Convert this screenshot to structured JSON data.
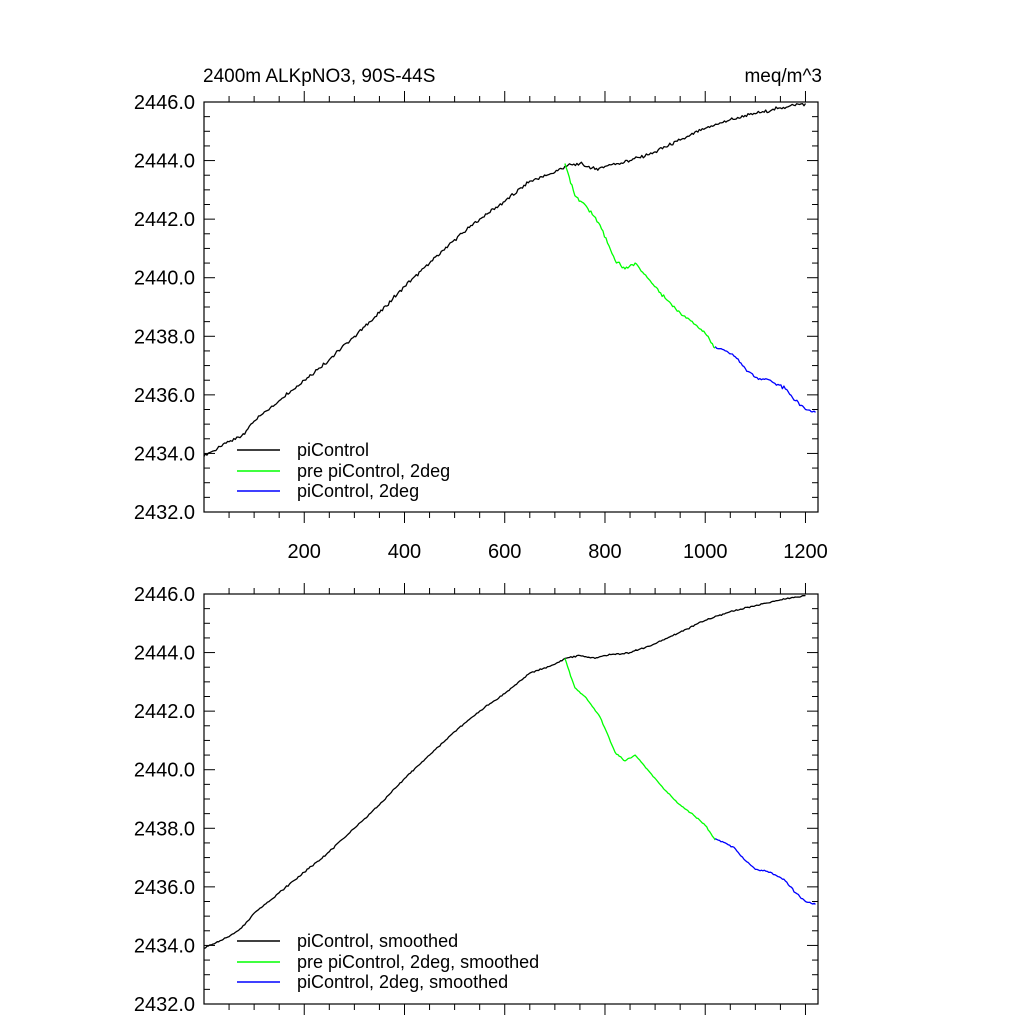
{
  "chart_data": [
    {
      "type": "line",
      "title": "2400m ALKpNO3, 90S-44S",
      "units": "meq/m^3",
      "xlim": [
        0,
        1225
      ],
      "ylim": [
        2432,
        2446
      ],
      "x_ticks": [
        200,
        400,
        600,
        800,
        1000,
        1200
      ],
      "x_tick_labels": [
        "200",
        "400",
        "600",
        "800",
        "1000",
        "1200"
      ],
      "y_ticks": [
        2432,
        2434,
        2436,
        2438,
        2440,
        2442,
        2444,
        2446
      ],
      "y_tick_labels": [
        "2432.0",
        "2434.0",
        "2436.0",
        "2438.0",
        "2440.0",
        "2442.0",
        "2444.0",
        "2446.0"
      ],
      "legend_position": "bottom-left",
      "series": [
        {
          "name": "piControl",
          "color": "#000000",
          "x": [
            0,
            50,
            75,
            100,
            150,
            200,
            250,
            300,
            350,
            400,
            450,
            500,
            550,
            600,
            650,
            700,
            720,
            750,
            780,
            800,
            850,
            900,
            950,
            1000,
            1050,
            1100,
            1150,
            1200
          ],
          "y": [
            2433.9,
            2434.4,
            2434.6,
            2435.1,
            2435.8,
            2436.5,
            2437.2,
            2438.0,
            2438.8,
            2439.7,
            2440.5,
            2441.3,
            2442.0,
            2442.6,
            2443.3,
            2443.6,
            2443.8,
            2443.9,
            2443.7,
            2443.8,
            2444.0,
            2444.3,
            2444.7,
            2445.1,
            2445.4,
            2445.6,
            2445.8,
            2445.95
          ]
        },
        {
          "name": "pre piControl, 2deg",
          "color": "#00ff00",
          "x": [
            720,
            740,
            760,
            790,
            820,
            840,
            860,
            890,
            920,
            950,
            980,
            1000,
            1020
          ],
          "y": [
            2443.9,
            2442.8,
            2442.5,
            2441.8,
            2440.6,
            2440.3,
            2440.5,
            2439.9,
            2439.3,
            2438.8,
            2438.4,
            2438.1,
            2437.6
          ]
        },
        {
          "name": "piControl, 2deg",
          "color": "#0000ff",
          "x": [
            1020,
            1040,
            1060,
            1080,
            1100,
            1130,
            1160,
            1180,
            1200,
            1220
          ],
          "y": [
            2437.65,
            2437.5,
            2437.3,
            2436.9,
            2436.6,
            2436.5,
            2436.2,
            2435.8,
            2435.5,
            2435.4
          ]
        }
      ]
    },
    {
      "type": "line",
      "title": "",
      "units": "",
      "xlim": [
        0,
        1225
      ],
      "ylim": [
        2432,
        2446
      ],
      "x_ticks": [
        200,
        400,
        600,
        800,
        1000,
        1200
      ],
      "x_tick_labels": [],
      "y_ticks": [
        2432,
        2434,
        2436,
        2438,
        2440,
        2442,
        2444,
        2446
      ],
      "y_tick_labels": [
        "2432.0",
        "2434.0",
        "2436.0",
        "2438.0",
        "2440.0",
        "2442.0",
        "2444.0",
        "2446.0"
      ],
      "legend_position": "bottom-left",
      "series": [
        {
          "name": "piControl, smoothed",
          "color": "#000000",
          "x": [
            0,
            50,
            75,
            100,
            150,
            200,
            250,
            300,
            350,
            400,
            450,
            500,
            550,
            600,
            650,
            700,
            720,
            750,
            780,
            800,
            850,
            900,
            950,
            1000,
            1050,
            1100,
            1150,
            1200
          ],
          "y": [
            2433.9,
            2434.3,
            2434.6,
            2435.1,
            2435.8,
            2436.5,
            2437.2,
            2438.0,
            2438.8,
            2439.7,
            2440.5,
            2441.3,
            2442.0,
            2442.6,
            2443.3,
            2443.6,
            2443.8,
            2443.9,
            2443.8,
            2443.9,
            2444.0,
            2444.3,
            2444.7,
            2445.1,
            2445.4,
            2445.6,
            2445.8,
            2445.95
          ]
        },
        {
          "name": "pre piControl, 2deg, smoothed",
          "color": "#00ff00",
          "x": [
            720,
            740,
            760,
            790,
            820,
            840,
            860,
            890,
            920,
            950,
            980,
            1000,
            1020
          ],
          "y": [
            2443.8,
            2442.8,
            2442.5,
            2441.8,
            2440.6,
            2440.3,
            2440.5,
            2439.9,
            2439.3,
            2438.8,
            2438.4,
            2438.1,
            2437.6
          ]
        },
        {
          "name": "piControl, 2deg, smoothed",
          "color": "#0000ff",
          "x": [
            1020,
            1040,
            1060,
            1080,
            1100,
            1130,
            1160,
            1180,
            1200,
            1220
          ],
          "y": [
            2437.65,
            2437.5,
            2437.3,
            2436.9,
            2436.6,
            2436.5,
            2436.2,
            2435.8,
            2435.5,
            2435.4
          ]
        }
      ]
    }
  ]
}
